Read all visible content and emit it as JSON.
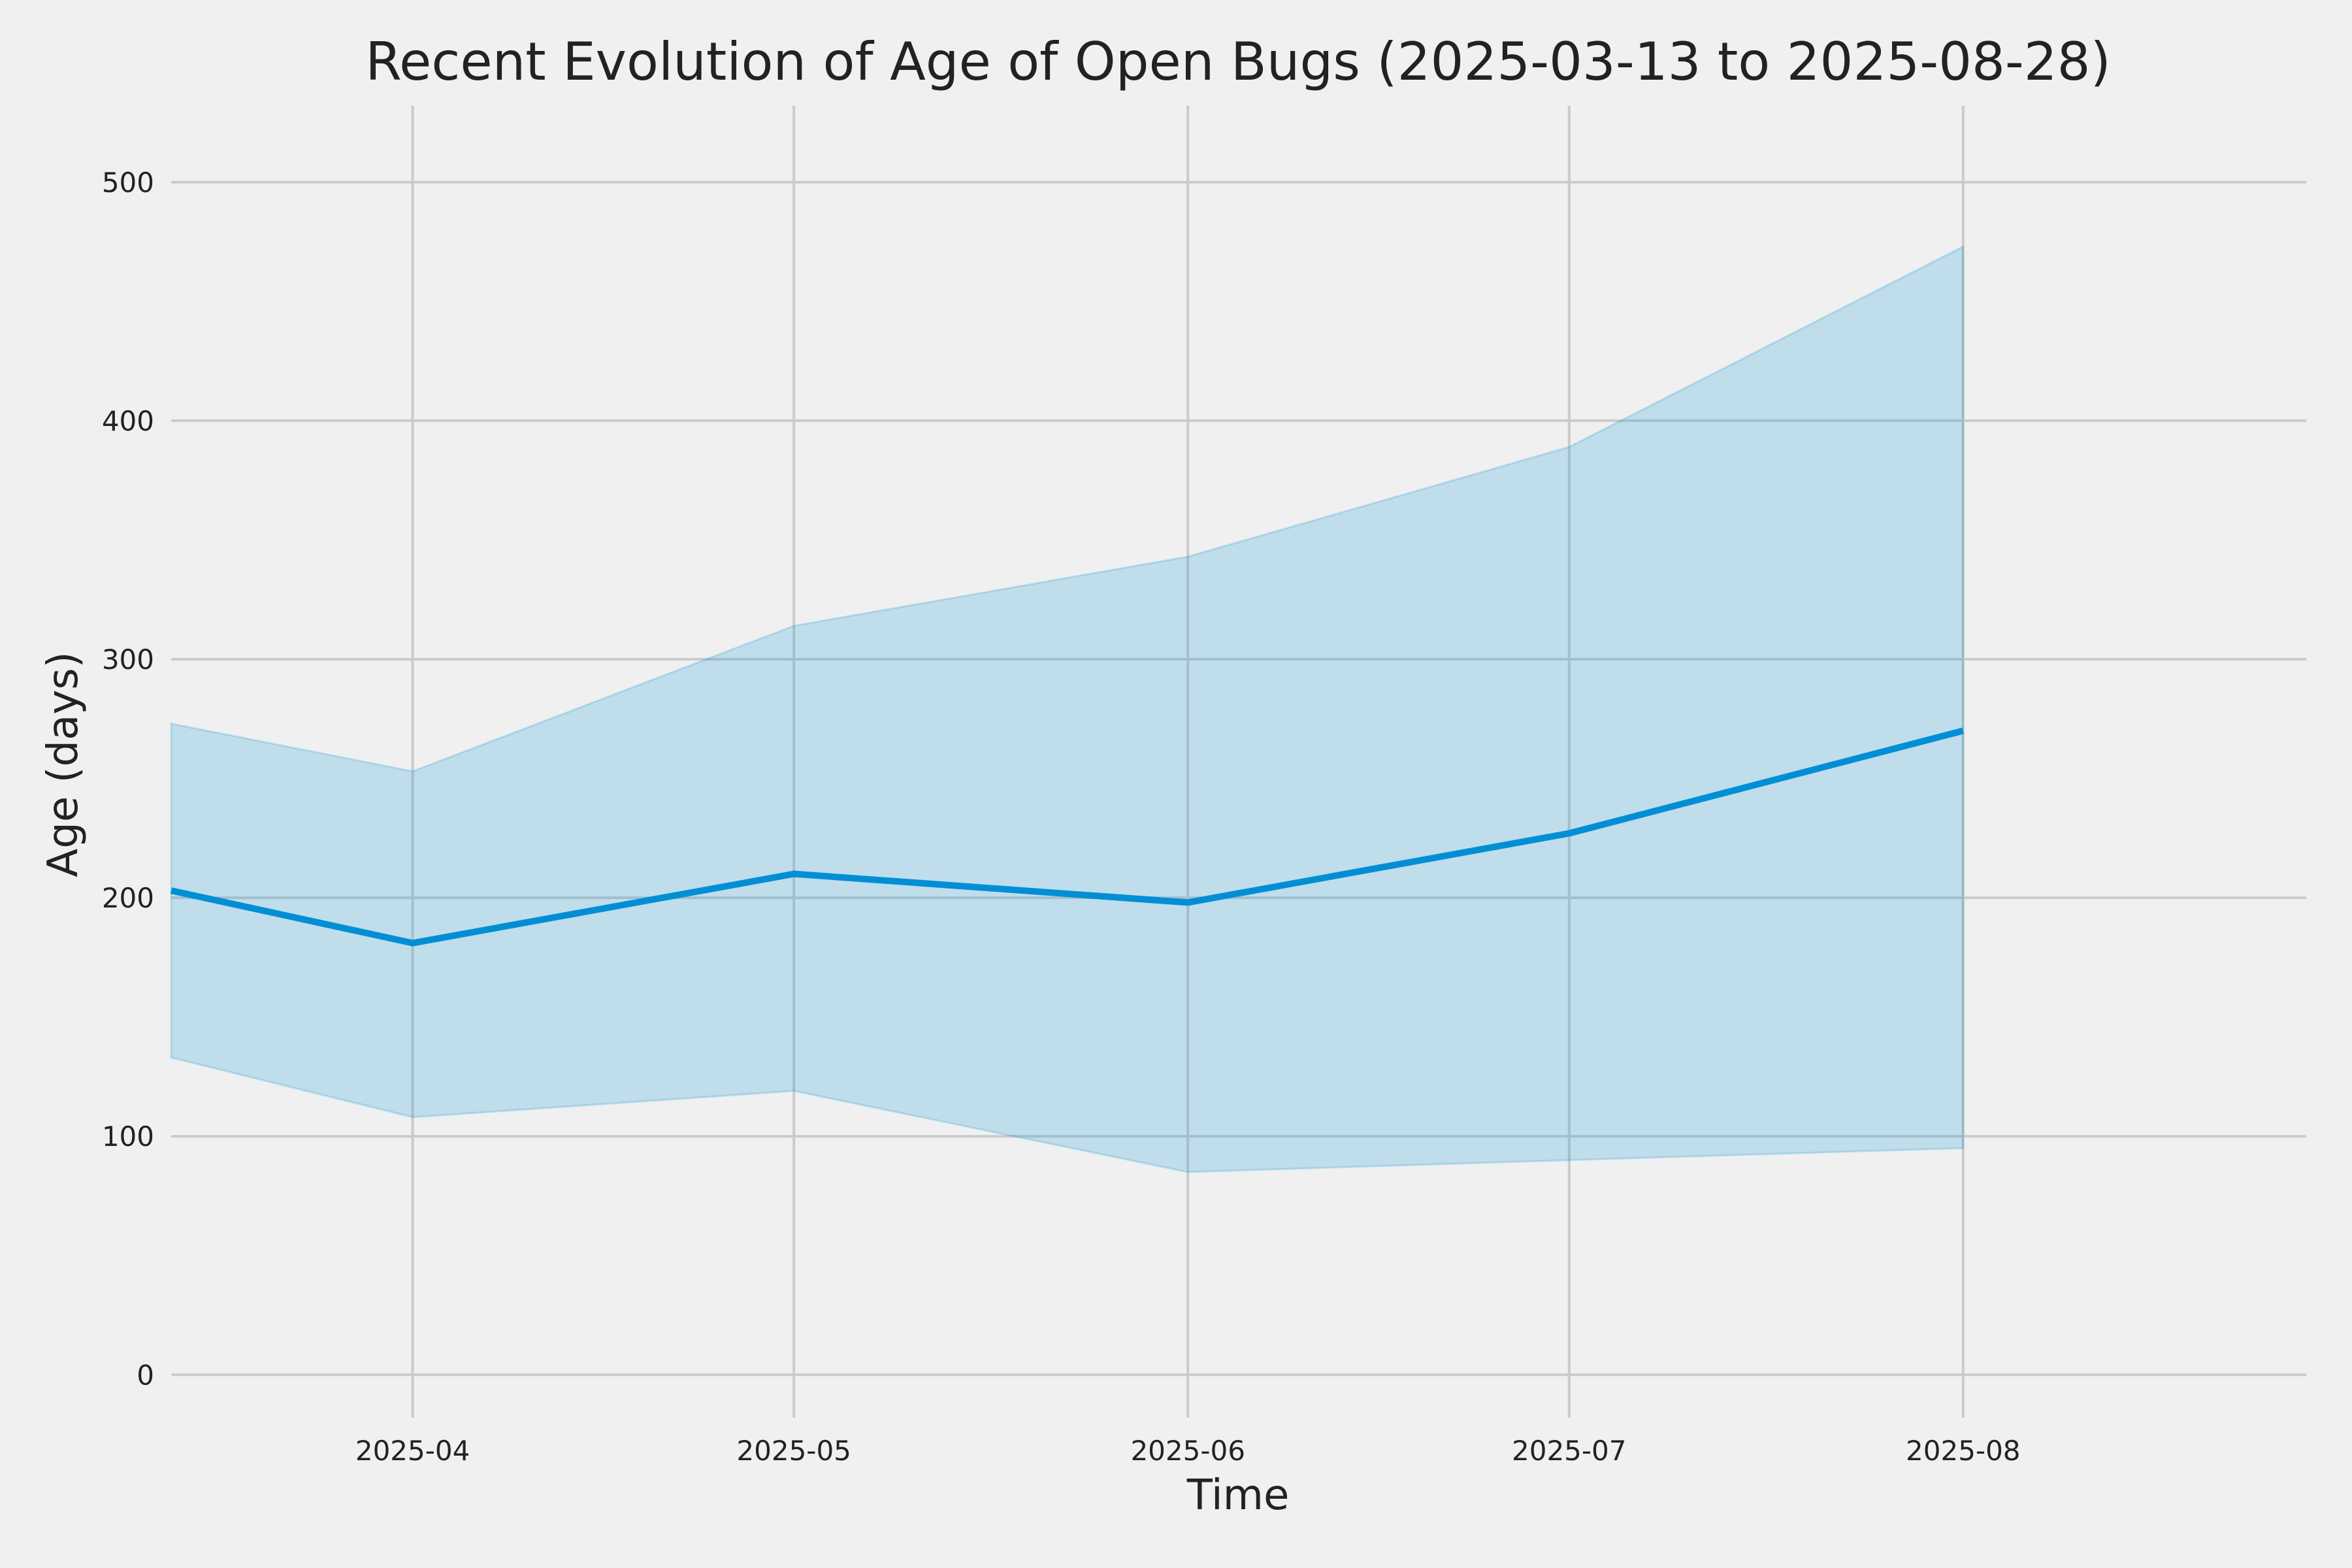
{
  "chart_data": {
    "type": "area",
    "title": "Recent Evolution of Age of Open Bugs (2025-03-13 to 2025-08-28)",
    "xlabel": "Time",
    "ylabel": "Age (days)",
    "xlim": [
      "2025-03-13",
      "2025-08-28"
    ],
    "ylim": [
      -18,
      532
    ],
    "grid": true,
    "x_tick_labels": [
      "2025-04",
      "2025-05",
      "2025-06",
      "2025-07",
      "2025-08"
    ],
    "x_ticks": [
      "2025-04-01",
      "2025-05-01",
      "2025-06-01",
      "2025-07-01",
      "2025-08-01"
    ],
    "y_ticks": [
      0,
      100,
      200,
      300,
      400,
      500
    ],
    "x": [
      "2025-03-13",
      "2025-04-01",
      "2025-05-01",
      "2025-06-01",
      "2025-07-01",
      "2025-08-01"
    ],
    "series": [
      {
        "values": [
          203,
          181,
          210,
          198,
          227,
          270
        ],
        "style": "line"
      }
    ],
    "band": {
      "upper": [
        273,
        253,
        314,
        343,
        389,
        473
      ],
      "lower": [
        133,
        108,
        119,
        85,
        90,
        95
      ]
    },
    "colors": {
      "line": "#008fd5",
      "band": "#008fd5",
      "background": "#f0f0f0",
      "grid": "#cbcbcb"
    }
  }
}
